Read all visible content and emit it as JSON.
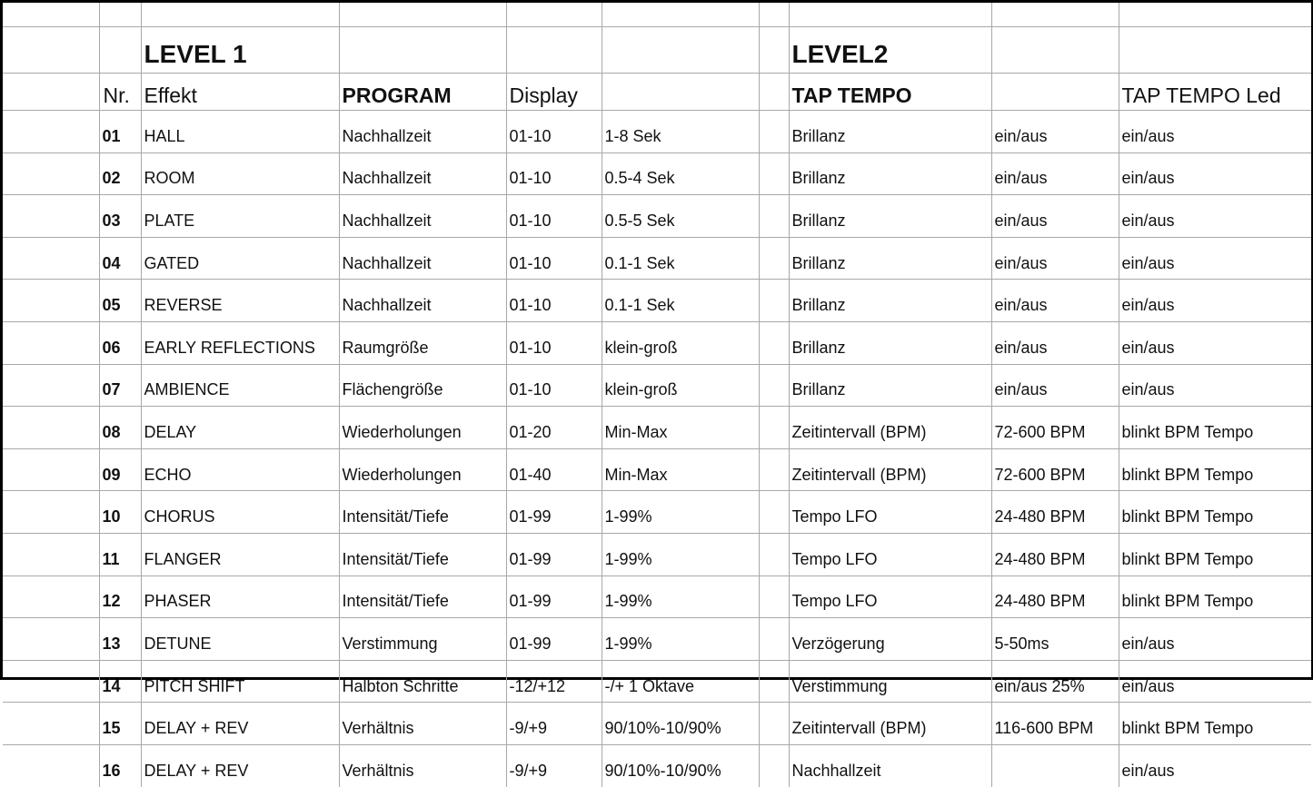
{
  "level_titles": {
    "level1": "LEVEL 1",
    "level2": "LEVEL2"
  },
  "headers": {
    "nr": "Nr.",
    "effekt": "Effekt",
    "program": "PROGRAM",
    "display": "Display",
    "tap_tempo": "TAP TEMPO",
    "tap_tempo_led": "TAP TEMPO Led"
  },
  "rows": [
    [
      "01",
      "HALL",
      "Nachhallzeit",
      "01-10",
      "1-8 Sek",
      "Brillanz",
      "ein/aus",
      "ein/aus"
    ],
    [
      "02",
      "ROOM",
      "Nachhallzeit",
      "01-10",
      "0.5-4 Sek",
      "Brillanz",
      "ein/aus",
      "ein/aus"
    ],
    [
      "03",
      "PLATE",
      "Nachhallzeit",
      "01-10",
      "0.5-5 Sek",
      "Brillanz",
      "ein/aus",
      "ein/aus"
    ],
    [
      "04",
      "GATED",
      "Nachhallzeit",
      "01-10",
      "0.1-1 Sek",
      "Brillanz",
      "ein/aus",
      "ein/aus"
    ],
    [
      "05",
      "REVERSE",
      "Nachhallzeit",
      "01-10",
      "0.1-1 Sek",
      "Brillanz",
      "ein/aus",
      "ein/aus"
    ],
    [
      "06",
      "EARLY REFLECTIONS",
      "Raumgröße",
      "01-10",
      "klein-groß",
      "Brillanz",
      "ein/aus",
      "ein/aus"
    ],
    [
      "07",
      "AMBIENCE",
      "Flächengröße",
      "01-10",
      "klein-groß",
      "Brillanz",
      "ein/aus",
      "ein/aus"
    ],
    [
      "08",
      "DELAY",
      "Wiederholungen",
      "01-20",
      "Min-Max",
      "Zeitintervall (BPM)",
      "72-600 BPM",
      "blinkt BPM Tempo"
    ],
    [
      "09",
      "ECHO",
      "Wiederholungen",
      "01-40",
      "Min-Max",
      "Zeitintervall (BPM)",
      "72-600 BPM",
      "blinkt BPM Tempo"
    ],
    [
      "10",
      "CHORUS",
      "Intensität/Tiefe",
      "01-99",
      "1-99%",
      "Tempo LFO",
      "24-480 BPM",
      "blinkt BPM Tempo"
    ],
    [
      "11",
      "FLANGER",
      "Intensität/Tiefe",
      "01-99",
      "1-99%",
      "Tempo LFO",
      "24-480 BPM",
      "blinkt BPM Tempo"
    ],
    [
      "12",
      "PHASER",
      "Intensität/Tiefe",
      "01-99",
      "1-99%",
      "Tempo LFO",
      "24-480 BPM",
      "blinkt BPM Tempo"
    ],
    [
      "13",
      "DETUNE",
      "Verstimmung",
      "01-99",
      "1-99%",
      "Verzögerung",
      "5-50ms",
      "ein/aus"
    ],
    [
      "14",
      "PITCH SHIFT",
      "Halbton Schritte",
      "-12/+12",
      "-/+ 1 Oktave",
      "Verstimmung",
      "ein/aus 25%",
      "ein/aus"
    ],
    [
      "15",
      "DELAY + REV",
      "Verhältnis",
      "-9/+9",
      "90/10%-10/90%",
      "Zeitintervall (BPM)",
      "116-600 BPM",
      "blinkt BPM Tempo"
    ],
    [
      "16",
      "DELAY + REV",
      "Verhältnis",
      "-9/+9",
      "90/10%-10/90%",
      "Nachhallzeit",
      "",
      "ein/aus"
    ]
  ]
}
